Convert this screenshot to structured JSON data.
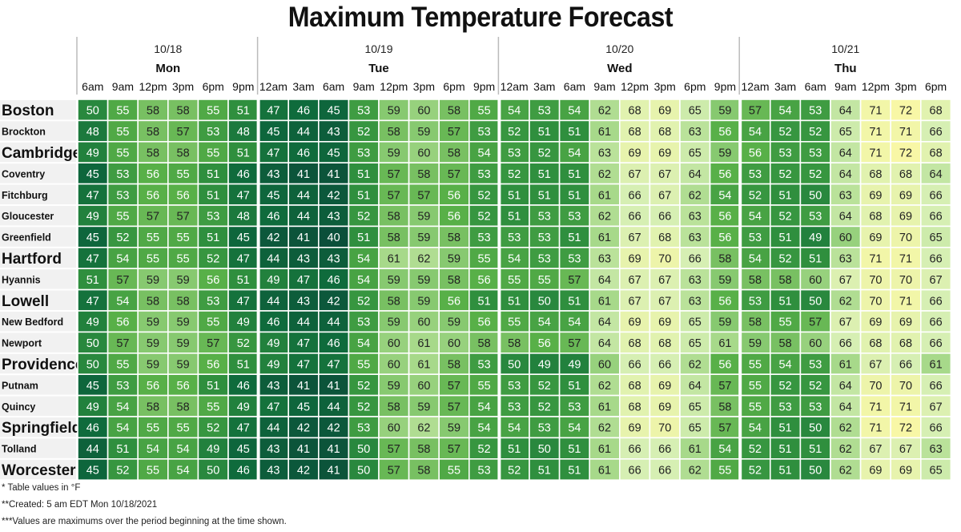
{
  "chart_data": {
    "type": "heatmap",
    "title": "Maximum Temperature Forecast",
    "unit": "°F",
    "colors": {
      "low": "#0b5136",
      "mid": "#3fa34d",
      "high": "#f7f7a8",
      "background": "#ffffff"
    },
    "color_scale": [
      {
        "value": 40,
        "color": "#0b4f3a"
      },
      {
        "value": 46,
        "color": "#0f6b3c"
      },
      {
        "value": 51,
        "color": "#2f8f3e"
      },
      {
        "value": 56,
        "color": "#58b048"
      },
      {
        "value": 61,
        "color": "#a7d98a"
      },
      {
        "value": 66,
        "color": "#d6efb3"
      },
      {
        "value": 72,
        "color": "#f8f7a6"
      }
    ],
    "days": [
      {
        "date": "10/18",
        "name": "Mon",
        "span": 6
      },
      {
        "date": "10/19",
        "name": "Tue",
        "span": 8
      },
      {
        "date": "10/20",
        "name": "Wed",
        "span": 8
      },
      {
        "date": "10/21",
        "name": "Thu",
        "span": 7
      }
    ],
    "times": [
      "6am",
      "9am",
      "12pm",
      "3pm",
      "6pm",
      "9pm",
      "12am",
      "3am",
      "6am",
      "9am",
      "12pm",
      "3pm",
      "6pm",
      "9pm",
      "12am",
      "3am",
      "6am",
      "9am",
      "12pm",
      "3pm",
      "6pm",
      "9pm",
      "12am",
      "3am",
      "6am",
      "9am",
      "12pm",
      "3pm",
      "6pm"
    ],
    "rows": [
      {
        "city": "Boston",
        "major": true,
        "values": [
          50,
          55,
          58,
          58,
          55,
          51,
          47,
          46,
          45,
          53,
          59,
          60,
          58,
          55,
          54,
          53,
          54,
          62,
          68,
          69,
          65,
          59,
          57,
          54,
          53,
          64,
          71,
          72,
          68
        ]
      },
      {
        "city": "Brockton",
        "major": false,
        "values": [
          48,
          55,
          58,
          57,
          53,
          48,
          45,
          44,
          43,
          52,
          58,
          59,
          57,
          53,
          52,
          51,
          51,
          61,
          68,
          68,
          63,
          56,
          54,
          52,
          52,
          65,
          71,
          71,
          66
        ]
      },
      {
        "city": "Cambridge",
        "major": true,
        "values": [
          49,
          55,
          58,
          58,
          55,
          51,
          47,
          46,
          45,
          53,
          59,
          60,
          58,
          54,
          53,
          52,
          54,
          63,
          69,
          69,
          65,
          59,
          56,
          53,
          53,
          64,
          71,
          72,
          68
        ]
      },
      {
        "city": "Coventry",
        "major": false,
        "values": [
          45,
          53,
          56,
          55,
          51,
          46,
          43,
          41,
          41,
          51,
          57,
          58,
          57,
          53,
          52,
          51,
          51,
          62,
          67,
          67,
          64,
          56,
          53,
          52,
          52,
          64,
          68,
          68,
          64
        ]
      },
      {
        "city": "Fitchburg",
        "major": false,
        "values": [
          47,
          53,
          56,
          56,
          51,
          47,
          45,
          44,
          42,
          51,
          57,
          57,
          56,
          52,
          51,
          51,
          51,
          61,
          66,
          67,
          62,
          54,
          52,
          51,
          50,
          63,
          69,
          69,
          66
        ]
      },
      {
        "city": "Gloucester",
        "major": false,
        "values": [
          49,
          55,
          57,
          57,
          53,
          48,
          46,
          44,
          43,
          52,
          58,
          59,
          56,
          52,
          51,
          53,
          53,
          62,
          66,
          66,
          63,
          56,
          54,
          52,
          53,
          64,
          68,
          69,
          66
        ]
      },
      {
        "city": "Greenfield",
        "major": false,
        "values": [
          45,
          52,
          55,
          55,
          51,
          45,
          42,
          41,
          40,
          51,
          58,
          59,
          58,
          53,
          53,
          53,
          51,
          61,
          67,
          68,
          63,
          56,
          53,
          51,
          49,
          60,
          69,
          70,
          65
        ]
      },
      {
        "city": "Hartford",
        "major": true,
        "values": [
          47,
          54,
          55,
          55,
          52,
          47,
          44,
          43,
          43,
          54,
          61,
          62,
          59,
          55,
          54,
          53,
          53,
          63,
          69,
          70,
          66,
          58,
          54,
          52,
          51,
          63,
          71,
          71,
          66
        ]
      },
      {
        "city": "Hyannis",
        "major": false,
        "values": [
          51,
          57,
          59,
          59,
          56,
          51,
          49,
          47,
          46,
          54,
          59,
          59,
          58,
          56,
          55,
          55,
          57,
          64,
          67,
          67,
          63,
          59,
          58,
          58,
          60,
          67,
          70,
          70,
          67
        ]
      },
      {
        "city": "Lowell",
        "major": true,
        "values": [
          47,
          54,
          58,
          58,
          53,
          47,
          44,
          43,
          42,
          52,
          58,
          59,
          56,
          51,
          51,
          50,
          51,
          61,
          67,
          67,
          63,
          56,
          53,
          51,
          50,
          62,
          70,
          71,
          66
        ]
      },
      {
        "city": "New Bedford",
        "major": false,
        "values": [
          49,
          56,
          59,
          59,
          55,
          49,
          46,
          44,
          44,
          53,
          59,
          60,
          59,
          56,
          55,
          54,
          54,
          64,
          69,
          69,
          65,
          59,
          58,
          55,
          57,
          67,
          69,
          69,
          66
        ]
      },
      {
        "city": "Newport",
        "major": false,
        "values": [
          50,
          57,
          59,
          59,
          57,
          52,
          49,
          47,
          46,
          54,
          60,
          61,
          60,
          58,
          58,
          56,
          57,
          64,
          68,
          68,
          65,
          61,
          59,
          58,
          60,
          66,
          68,
          68,
          66
        ]
      },
      {
        "city": "Providence",
        "major": true,
        "values": [
          50,
          55,
          59,
          59,
          56,
          51,
          49,
          47,
          47,
          55,
          60,
          61,
          58,
          53,
          50,
          49,
          49,
          60,
          66,
          66,
          62,
          56,
          55,
          54,
          53,
          61,
          67,
          66,
          61
        ]
      },
      {
        "city": "Putnam",
        "major": false,
        "values": [
          45,
          53,
          56,
          56,
          51,
          46,
          43,
          41,
          41,
          52,
          59,
          60,
          57,
          55,
          53,
          52,
          51,
          62,
          68,
          69,
          64,
          57,
          55,
          52,
          52,
          64,
          70,
          70,
          66
        ]
      },
      {
        "city": "Quincy",
        "major": false,
        "values": [
          49,
          54,
          58,
          58,
          55,
          49,
          47,
          45,
          44,
          52,
          58,
          59,
          57,
          54,
          53,
          52,
          53,
          61,
          68,
          69,
          65,
          58,
          55,
          53,
          53,
          64,
          71,
          71,
          67
        ]
      },
      {
        "city": "Springfield",
        "major": true,
        "values": [
          46,
          54,
          55,
          55,
          52,
          47,
          44,
          42,
          42,
          53,
          60,
          62,
          59,
          54,
          54,
          53,
          54,
          62,
          69,
          70,
          65,
          57,
          54,
          51,
          50,
          62,
          71,
          72,
          66
        ]
      },
      {
        "city": "Tolland",
        "major": false,
        "values": [
          44,
          51,
          54,
          54,
          49,
          45,
          43,
          41,
          41,
          50,
          57,
          58,
          57,
          52,
          51,
          50,
          51,
          61,
          66,
          66,
          61,
          54,
          52,
          51,
          51,
          62,
          67,
          67,
          63
        ]
      },
      {
        "city": "Worcester",
        "major": true,
        "values": [
          45,
          52,
          55,
          54,
          50,
          46,
          43,
          42,
          41,
          50,
          57,
          58,
          55,
          53,
          52,
          51,
          51,
          61,
          66,
          66,
          62,
          55,
          52,
          51,
          50,
          62,
          69,
          69,
          65
        ]
      }
    ]
  },
  "notes": {
    "note1": "* Table values in °F",
    "note2": "**Created: 5 am EDT Mon 10/18/2021",
    "note3": "***Values are maximums over the period beginning at the time shown."
  }
}
